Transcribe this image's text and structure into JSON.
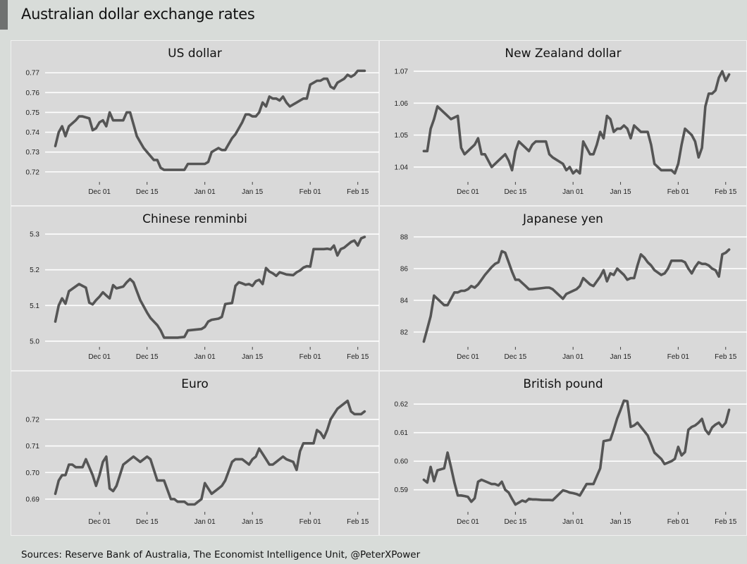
{
  "header": {
    "title": "Australian dollar exchange rates"
  },
  "footer": {
    "source": "Sources: Reserve Bank of Australia, The Economist Intelligence Unit, @PeterXPower"
  },
  "colors": {
    "line": "#555555",
    "panel_bg": "#d9d9d9",
    "gridline": "#ffffff",
    "page_bg": "#d8dcd9"
  },
  "x_ticks": [
    {
      "day": 13,
      "label": "Dec 01"
    },
    {
      "day": 27,
      "label": "Dec 15"
    },
    {
      "day": 44,
      "label": "Jan 01"
    },
    {
      "day": 58,
      "label": "Jan 15"
    },
    {
      "day": 75,
      "label": "Feb 01"
    },
    {
      "day": 89,
      "label": "Feb 15"
    }
  ],
  "chart_data": [
    {
      "type": "line",
      "title": "US dollar",
      "ylim": [
        0.716,
        0.774
      ],
      "yticks": [
        0.72,
        0.73,
        0.74,
        0.75,
        0.76,
        0.77
      ],
      "ytick_labels": [
        "0.72",
        "0.73",
        "0.74",
        "0.75",
        "0.76",
        "0.77"
      ],
      "grid": true,
      "x": [
        0,
        1,
        2,
        3,
        4,
        6,
        7,
        8,
        10,
        11,
        12,
        13,
        14,
        15,
        16,
        17,
        18,
        20,
        21,
        22,
        23,
        24,
        25,
        26,
        27,
        29,
        30,
        31,
        32,
        34,
        35,
        36,
        38,
        39,
        41,
        42,
        43,
        44,
        45,
        46,
        48,
        49,
        50,
        52,
        53,
        55,
        56,
        57,
        58,
        59,
        60,
        61,
        62,
        63,
        64,
        65,
        66,
        67,
        68,
        69,
        70,
        71,
        72,
        73,
        74,
        75,
        76,
        77,
        78,
        79,
        80,
        81,
        82,
        83,
        84,
        85,
        86,
        87,
        88,
        89,
        90,
        91
      ],
      "values": [
        0.733,
        0.74,
        0.743,
        0.738,
        0.743,
        0.746,
        0.748,
        0.748,
        0.747,
        0.741,
        0.742,
        0.745,
        0.746,
        0.743,
        0.75,
        0.746,
        0.746,
        0.746,
        0.75,
        0.75,
        0.744,
        0.738,
        0.735,
        0.732,
        0.73,
        0.726,
        0.726,
        0.722,
        0.721,
        0.721,
        0.721,
        0.721,
        0.721,
        0.724,
        0.724,
        0.724,
        0.724,
        0.724,
        0.725,
        0.73,
        0.732,
        0.731,
        0.731,
        0.737,
        0.739,
        0.745,
        0.749,
        0.749,
        0.748,
        0.748,
        0.75,
        0.755,
        0.753,
        0.758,
        0.757,
        0.757,
        0.756,
        0.758,
        0.755,
        0.753,
        0.754,
        0.755,
        0.756,
        0.757,
        0.757,
        0.764,
        0.765,
        0.766,
        0.766,
        0.767,
        0.767,
        0.763,
        0.762,
        0.765,
        0.766,
        0.767,
        0.769,
        0.768,
        0.769,
        0.771,
        0.771,
        0.771
      ]
    },
    {
      "type": "line",
      "title": "New Zealand dollar",
      "ylim": [
        1.036,
        1.072
      ],
      "yticks": [
        1.04,
        1.05,
        1.06,
        1.07
      ],
      "ytick_labels": [
        "1.04",
        "1.05",
        "1.06",
        "1.07"
      ],
      "grid": true,
      "x": [
        0,
        1,
        2,
        3,
        4,
        5,
        6,
        7,
        8,
        10,
        11,
        12,
        13,
        14,
        15,
        16,
        17,
        18,
        20,
        21,
        22,
        23,
        24,
        25,
        26,
        27,
        28,
        29,
        30,
        31,
        32,
        33,
        36,
        37,
        38,
        41,
        42,
        43,
        44,
        45,
        46,
        47,
        49,
        50,
        51,
        52,
        53,
        54,
        55,
        56,
        57,
        58,
        59,
        60,
        61,
        62,
        63,
        64,
        65,
        66,
        67,
        68,
        70,
        71,
        72,
        73,
        74,
        75,
        76,
        77,
        78,
        79,
        80,
        81,
        82,
        83,
        84,
        85,
        86,
        87,
        88,
        89,
        90
      ],
      "values": [
        1.045,
        1.045,
        1.052,
        1.055,
        1.059,
        1.058,
        1.057,
        1.056,
        1.055,
        1.056,
        1.046,
        1.044,
        1.045,
        1.046,
        1.047,
        1.049,
        1.044,
        1.044,
        1.04,
        1.041,
        1.042,
        1.043,
        1.044,
        1.042,
        1.039,
        1.045,
        1.048,
        1.047,
        1.046,
        1.045,
        1.047,
        1.048,
        1.048,
        1.044,
        1.043,
        1.041,
        1.039,
        1.04,
        1.038,
        1.039,
        1.038,
        1.048,
        1.044,
        1.044,
        1.047,
        1.051,
        1.049,
        1.056,
        1.055,
        1.051,
        1.052,
        1.052,
        1.053,
        1.052,
        1.049,
        1.053,
        1.052,
        1.051,
        1.051,
        1.051,
        1.047,
        1.041,
        1.039,
        1.039,
        1.039,
        1.039,
        1.038,
        1.041,
        1.047,
        1.052,
        1.051,
        1.05,
        1.048,
        1.043,
        1.046,
        1.059,
        1.063,
        1.063,
        1.064,
        1.068,
        1.07,
        1.067,
        1.069
      ]
    },
    {
      "type": "line",
      "title": "Chinese renminbi",
      "ylim": [
        4.99,
        5.31
      ],
      "yticks": [
        5.0,
        5.1,
        5.2,
        5.3
      ],
      "ytick_labels": [
        "5.0",
        "5.1",
        "5.2",
        "5.3"
      ],
      "grid": true,
      "x": [
        0,
        1,
        2,
        3,
        4,
        7,
        8,
        9,
        10,
        11,
        12,
        13,
        14,
        15,
        16,
        17,
        18,
        20,
        21,
        22,
        23,
        24,
        25,
        27,
        28,
        30,
        31,
        32,
        34,
        35,
        36,
        38,
        39,
        41,
        42,
        43,
        44,
        45,
        46,
        48,
        49,
        50,
        52,
        53,
        54,
        55,
        56,
        57,
        58,
        59,
        60,
        61,
        62,
        63,
        64,
        65,
        66,
        67,
        68,
        70,
        71,
        72,
        73,
        74,
        75,
        76,
        77,
        78,
        79,
        80,
        81,
        82,
        83,
        84,
        85,
        86,
        87,
        88,
        89,
        90,
        91
      ],
      "values": [
        5.055,
        5.1,
        5.12,
        5.105,
        5.14,
        5.16,
        5.155,
        5.15,
        5.108,
        5.103,
        5.115,
        5.125,
        5.137,
        5.128,
        5.12,
        5.157,
        5.148,
        5.153,
        5.165,
        5.174,
        5.165,
        5.14,
        5.115,
        5.08,
        5.065,
        5.045,
        5.03,
        5.01,
        5.01,
        5.01,
        5.01,
        5.012,
        5.03,
        5.032,
        5.033,
        5.034,
        5.04,
        5.055,
        5.06,
        5.063,
        5.068,
        5.104,
        5.107,
        5.155,
        5.165,
        5.162,
        5.158,
        5.16,
        5.155,
        5.168,
        5.172,
        5.16,
        5.205,
        5.195,
        5.19,
        5.183,
        5.193,
        5.19,
        5.187,
        5.185,
        5.193,
        5.198,
        5.206,
        5.21,
        5.209,
        5.258,
        5.258,
        5.258,
        5.258,
        5.259,
        5.257,
        5.268,
        5.24,
        5.258,
        5.262,
        5.27,
        5.278,
        5.282,
        5.268,
        5.288,
        5.292
      ]
    },
    {
      "type": "line",
      "title": "Japanese yen",
      "ylim": [
        81.2,
        88.4
      ],
      "yticks": [
        82,
        84,
        86,
        88
      ],
      "ytick_labels": [
        "82",
        "84",
        "86",
        "88"
      ],
      "grid": true,
      "x": [
        0,
        1,
        2,
        3,
        4,
        6,
        7,
        8,
        9,
        10,
        11,
        12,
        13,
        14,
        15,
        16,
        17,
        18,
        20,
        21,
        22,
        23,
        24,
        25,
        26,
        27,
        28,
        29,
        30,
        31,
        32,
        36,
        37,
        38,
        41,
        42,
        43,
        44,
        45,
        46,
        47,
        49,
        50,
        51,
        52,
        53,
        54,
        55,
        56,
        57,
        58,
        59,
        60,
        61,
        62,
        63,
        64,
        65,
        66,
        67,
        68,
        70,
        71,
        72,
        73,
        74,
        75,
        76,
        77,
        78,
        79,
        80,
        81,
        82,
        83,
        84,
        85,
        86,
        87,
        88,
        89,
        90
      ],
      "values": [
        81.4,
        82.2,
        83.0,
        84.3,
        84.1,
        83.7,
        83.7,
        84.1,
        84.5,
        84.5,
        84.6,
        84.6,
        84.7,
        84.9,
        84.8,
        85.0,
        85.3,
        85.6,
        86.1,
        86.3,
        86.4,
        87.1,
        87.0,
        86.4,
        85.8,
        85.3,
        85.3,
        85.1,
        84.9,
        84.7,
        84.7,
        84.8,
        84.8,
        84.7,
        84.1,
        84.4,
        84.5,
        84.6,
        84.7,
        84.9,
        85.4,
        85.0,
        84.9,
        85.2,
        85.5,
        85.9,
        85.2,
        85.7,
        85.6,
        86.0,
        85.8,
        85.6,
        85.3,
        85.4,
        85.4,
        86.2,
        86.9,
        86.7,
        86.4,
        86.2,
        85.9,
        85.6,
        85.7,
        86.0,
        86.5,
        86.5,
        86.5,
        86.5,
        86.4,
        86.0,
        85.7,
        86.1,
        86.4,
        86.3,
        86.3,
        86.2,
        86.0,
        85.9,
        85.5,
        86.9,
        87.0,
        87.2
      ]
    },
    {
      "type": "line",
      "title": "Euro",
      "ylim": [
        0.686,
        0.729
      ],
      "yticks": [
        0.69,
        0.7,
        0.71,
        0.72
      ],
      "ytick_labels": [
        "0.69",
        "0.70",
        "0.71",
        "0.72"
      ],
      "grid": true,
      "x": [
        0,
        1,
        2,
        3,
        4,
        5,
        6,
        8,
        9,
        10,
        11,
        12,
        13,
        14,
        15,
        16,
        17,
        18,
        20,
        21,
        22,
        23,
        24,
        25,
        27,
        28,
        30,
        31,
        32,
        34,
        35,
        36,
        38,
        39,
        41,
        42,
        43,
        44,
        45,
        46,
        48,
        49,
        50,
        52,
        53,
        55,
        56,
        57,
        58,
        59,
        60,
        61,
        62,
        63,
        64,
        65,
        66,
        67,
        68,
        70,
        71,
        72,
        73,
        74,
        75,
        76,
        77,
        78,
        79,
        80,
        81,
        82,
        83,
        84,
        85,
        86,
        87,
        88,
        89,
        90,
        91
      ],
      "values": [
        0.692,
        0.697,
        0.699,
        0.699,
        0.703,
        0.703,
        0.702,
        0.702,
        0.705,
        0.702,
        0.699,
        0.695,
        0.699,
        0.704,
        0.706,
        0.694,
        0.693,
        0.695,
        0.703,
        0.704,
        0.705,
        0.706,
        0.705,
        0.704,
        0.706,
        0.705,
        0.697,
        0.697,
        0.697,
        0.69,
        0.69,
        0.689,
        0.689,
        0.688,
        0.688,
        0.689,
        0.69,
        0.696,
        0.694,
        0.692,
        0.694,
        0.695,
        0.697,
        0.704,
        0.705,
        0.705,
        0.704,
        0.703,
        0.705,
        0.706,
        0.709,
        0.707,
        0.705,
        0.703,
        0.703,
        0.704,
        0.705,
        0.706,
        0.705,
        0.704,
        0.701,
        0.708,
        0.711,
        0.711,
        0.711,
        0.711,
        0.716,
        0.715,
        0.713,
        0.716,
        0.72,
        0.722,
        0.724,
        0.725,
        0.726,
        0.727,
        0.723,
        0.722,
        0.722,
        0.722,
        0.723
      ]
    },
    {
      "type": "line",
      "title": "British pound",
      "ylim": [
        0.583,
        0.623
      ],
      "yticks": [
        0.59,
        0.6,
        0.61,
        0.62
      ],
      "ytick_labels": [
        "0.59",
        "0.60",
        "0.61",
        "0.62"
      ],
      "grid": true,
      "x": [
        0,
        1,
        2,
        3,
        4,
        6,
        7,
        8,
        9,
        10,
        11,
        12,
        13,
        14,
        15,
        16,
        17,
        18,
        20,
        21,
        22,
        23,
        24,
        25,
        26,
        27,
        28,
        29,
        30,
        31,
        32,
        33,
        34,
        35,
        36,
        37,
        38,
        41,
        42,
        43,
        44,
        45,
        46,
        48,
        49,
        50,
        52,
        53,
        55,
        56,
        57,
        58,
        59,
        60,
        61,
        62,
        63,
        64,
        65,
        66,
        67,
        68,
        70,
        71,
        72,
        73,
        74,
        75,
        76,
        77,
        78,
        79,
        80,
        81,
        82,
        83,
        84,
        85,
        86,
        87,
        88,
        89,
        90
      ],
      "values": [
        0.5935,
        0.5925,
        0.598,
        0.593,
        0.5968,
        0.5975,
        0.603,
        0.598,
        0.5925,
        0.588,
        0.588,
        0.5878,
        0.5875,
        0.5858,
        0.587,
        0.5928,
        0.5935,
        0.593,
        0.592,
        0.592,
        0.5915,
        0.5928,
        0.59,
        0.589,
        0.5868,
        0.5848,
        0.5855,
        0.5862,
        0.5858,
        0.5868,
        0.5866,
        0.5866,
        0.5865,
        0.5864,
        0.5864,
        0.5864,
        0.5863,
        0.5898,
        0.5895,
        0.589,
        0.5888,
        0.5885,
        0.588,
        0.592,
        0.592,
        0.592,
        0.5975,
        0.607,
        0.6075,
        0.611,
        0.615,
        0.618,
        0.6212,
        0.621,
        0.612,
        0.6125,
        0.6135,
        0.612,
        0.6105,
        0.609,
        0.606,
        0.603,
        0.6008,
        0.599,
        0.5995,
        0.6,
        0.6008,
        0.605,
        0.602,
        0.6032,
        0.611,
        0.612,
        0.6125,
        0.6135,
        0.6148,
        0.611,
        0.6095,
        0.6118,
        0.6128,
        0.6135,
        0.612,
        0.6135,
        0.618
      ]
    }
  ]
}
